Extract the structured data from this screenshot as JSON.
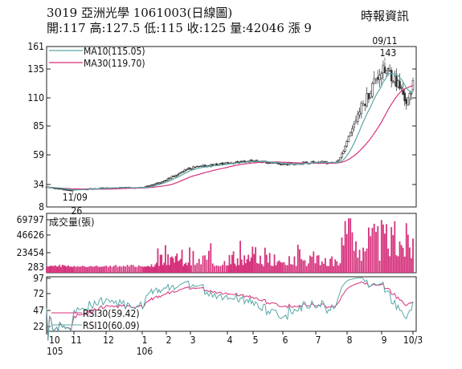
{
  "header": {
    "title": "3019  亞洲光學 1061003(日線圖)",
    "quote": "開:117 高:127.5 低:115 收:125 量:42046 漲 9",
    "source": "時報資訊"
  },
  "chart_data": [
    {
      "type": "candlestick",
      "name": "price",
      "y_ticks": [
        161,
        135,
        110,
        85,
        59,
        34,
        8
      ],
      "ylim": [
        8,
        161
      ],
      "legend": [
        "MA10(115.05)",
        "MA30(119.70)"
      ],
      "colors": {
        "ma10": "#5aa7a7",
        "ma30": "#d6327c",
        "candle": "#444444"
      },
      "annotations": [
        {
          "label": "11/09",
          "value": "26"
        },
        {
          "label": "09/11",
          "value": "143"
        }
      ],
      "latest": {
        "open": 117,
        "high": 127.5,
        "low": 115,
        "close": 125,
        "date": "1061003"
      },
      "key_points": [
        {
          "date": "105/10",
          "close": 31
        },
        {
          "date": "105/11/09",
          "low": 26
        },
        {
          "date": "105/12",
          "close": 30
        },
        {
          "date": "106/01",
          "close": 30
        },
        {
          "date": "106/02",
          "close": 38
        },
        {
          "date": "106/03",
          "close": 48
        },
        {
          "date": "106/04",
          "close": 52
        },
        {
          "date": "106/05",
          "close": 54
        },
        {
          "date": "106/06",
          "close": 51
        },
        {
          "date": "106/07",
          "close": 53
        },
        {
          "date": "106/08",
          "close": 56
        },
        {
          "date": "106/08/late",
          "close": 100
        },
        {
          "date": "106/09/11",
          "high": 143
        },
        {
          "date": "106/10/03",
          "close": 125
        }
      ]
    },
    {
      "type": "bar",
      "name": "volume",
      "title": "成交量(張)",
      "y_ticks": [
        69797,
        46626,
        23454,
        283
      ],
      "ylim": [
        283,
        69797
      ],
      "color": "#d6327c",
      "latest": 42046
    },
    {
      "type": "line",
      "name": "rsi",
      "y_ticks": [
        97,
        72,
        47,
        22
      ],
      "ylim": [
        12,
        100
      ],
      "legend": [
        "RSI30(59.42)",
        "RSI10(60.09)"
      ],
      "colors": {
        "rsi30": "#d6327c",
        "rsi10": "#5aa7a7"
      }
    }
  ],
  "x_axis": {
    "months": [
      "10",
      "11",
      "12",
      "1",
      "2",
      "3",
      "4",
      "5",
      "6",
      "7",
      "8",
      "9",
      "10/3"
    ],
    "years": [
      "105",
      "106"
    ]
  }
}
